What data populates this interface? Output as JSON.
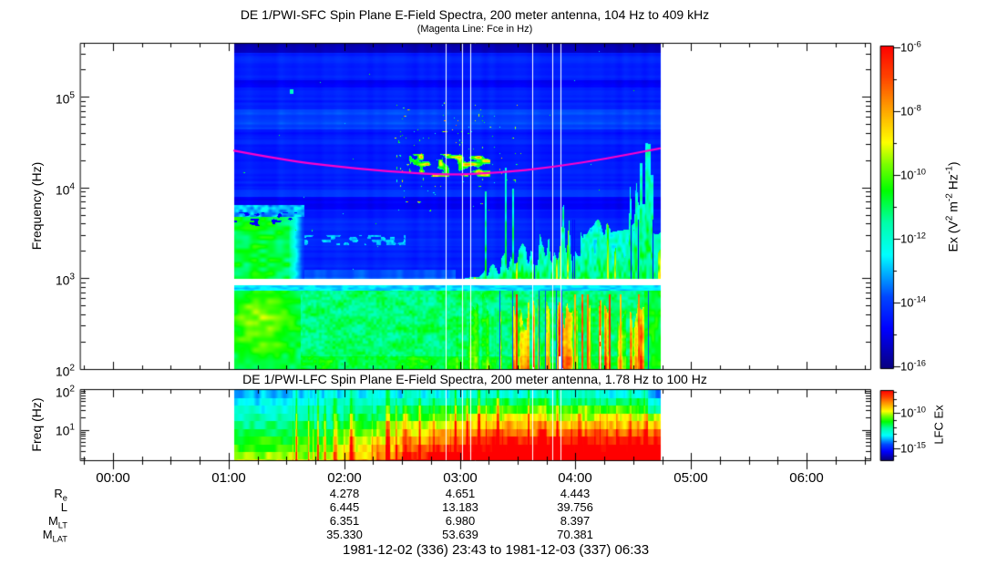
{
  "header": {
    "title": "DE 1/PWI-SFC  Spin Plane E-Field Spectra, 200 meter antenna, 104 Hz to 409 kHz",
    "subtitle": "(Magenta Line: Fce in Hz)"
  },
  "colors": {
    "background": "#ffffff",
    "frame": "#000000",
    "fce_line": "#ff00cc",
    "text": "#000000"
  },
  "chart_data": [
    {
      "id": "sfc",
      "type": "heatmap",
      "title": "DE 1/PWI-SFC  Spin Plane E-Field Spectra, 200 meter antenna, 104 Hz to 409 kHz",
      "annotation": "(Magenta Line: Fce in Hz)",
      "ylabel": "Frequency (Hz)",
      "y_scale": "log",
      "y_range_hz": [
        104,
        409000
      ],
      "y_ticks": [
        {
          "mant": "10",
          "exp": "5",
          "log10": 5
        },
        {
          "mant": "10",
          "exp": "4",
          "log10": 4
        },
        {
          "mant": "10",
          "exp": "3",
          "log10": 3
        },
        {
          "mant": "10",
          "exp": "2",
          "log10": 2
        }
      ],
      "x_axis": {
        "start_label": "23:43",
        "end_label": "06:33",
        "start_hours": -0.2833,
        "end_hours": 6.55,
        "hour_ticks": [
          {
            "h": 0,
            "label": "00:00"
          },
          {
            "h": 1,
            "label": "01:00"
          },
          {
            "h": 2,
            "label": "02:00"
          },
          {
            "h": 3,
            "label": "03:00"
          },
          {
            "h": 4,
            "label": "04:00"
          },
          {
            "h": 5,
            "label": "05:00"
          },
          {
            "h": 6,
            "label": "06:00"
          }
        ],
        "minor_tick_minutes": 15
      },
      "data_extent": {
        "start": "01:03",
        "end": "04:44",
        "start_hours": 1.05,
        "end_hours": 4.7333
      },
      "receiver_gap_hz": [
        850,
        1000
      ],
      "colorbar": {
        "scale": "log",
        "range": [
          1e-16,
          1e-06
        ],
        "ticks": [
          {
            "mant": "10",
            "exp": "-6",
            "value_exp": -6
          },
          {
            "mant": "10",
            "exp": "-8",
            "value_exp": -8
          },
          {
            "mant": "10",
            "exp": "-10",
            "value_exp": -10
          },
          {
            "mant": "10",
            "exp": "-12",
            "value_exp": -12
          },
          {
            "mant": "10",
            "exp": "-14",
            "value_exp": -14
          },
          {
            "mant": "10",
            "exp": "-16",
            "value_exp": -16
          }
        ],
        "label_parts": [
          {
            "t": "Ex (V"
          },
          {
            "t": "2",
            "sup": true
          },
          {
            "t": " m"
          },
          {
            "t": "-2",
            "sup": true
          },
          {
            "t": " Hz"
          },
          {
            "t": "-1",
            "sup": true
          },
          {
            "t": ")"
          }
        ]
      },
      "fce_line": {
        "name": "Fce (electron cyclotron frequency)",
        "color": "#ff00cc",
        "points": [
          {
            "u": 0.0,
            "hz": 25500
          },
          {
            "u": 0.12,
            "hz": 20000
          },
          {
            "u": 0.25,
            "hz": 16800
          },
          {
            "u": 0.4,
            "hz": 14600
          },
          {
            "u": 0.5,
            "hz": 13800
          },
          {
            "u": 0.62,
            "hz": 14500
          },
          {
            "u": 0.75,
            "hz": 16800
          },
          {
            "u": 0.88,
            "hz": 21000
          },
          {
            "u": 1.0,
            "hz": 27000
          }
        ]
      },
      "features": [
        "blue low-power background above 1 kHz with horizontal band striping",
        "green/yellow enhancement band 200 Hz - 1 kHz at start of pass (~01:05-01:30)",
        "broadband cyan/green vertical bursts intensifying 03:00-04:44 below ~10 kHz",
        "scattered cyan/white impulsive spikes near 02:30-03:10 around 10-30 kHz",
        "white horizontal receiver-band gap just below 1 kHz",
        "yellow/orange/red turbulence 104 Hz - 1 kHz after 03:00"
      ]
    },
    {
      "id": "lfc",
      "type": "heatmap",
      "title": "DE 1/PWI-LFC  Spin Plane E-Field Spectra, 200 meter antenna, 1.78 Hz to 100 Hz",
      "ylabel": "Freq (Hz)",
      "y_scale": "log",
      "y_range_hz": [
        1.78,
        100
      ],
      "y_ticks": [
        {
          "mant": "10",
          "exp": "2",
          "log10": 2
        },
        {
          "mant": "10",
          "exp": "1",
          "log10": 1
        }
      ],
      "data_extent": {
        "start": "01:03",
        "end": "04:44",
        "start_hours": 1.05,
        "end_hours": 4.7333
      },
      "colorbar": {
        "scale": "log",
        "label": "LFC Ex",
        "ticks": [
          {
            "mant": "10",
            "exp": "-10",
            "value_exp": -10
          },
          {
            "mant": "10",
            "exp": "-15",
            "value_exp": -15
          }
        ]
      },
      "features": [
        "intensity increases toward low frequency: cyan/green at 100 Hz to yellow/red below 10 Hz",
        "strong red saturation 03:00-04:30 across most channels"
      ]
    }
  ],
  "ephemeris": {
    "value_times": [
      "02:00",
      "03:00",
      "04:00"
    ],
    "value_hours": [
      2,
      3,
      4
    ],
    "rows": [
      {
        "label": "R",
        "sub": "e",
        "values": [
          "4.278",
          "4.651",
          "4.443"
        ]
      },
      {
        "label": "L",
        "sub": "",
        "values": [
          "6.445",
          "13.183",
          "39.756"
        ]
      },
      {
        "label": "M",
        "sub": "LT",
        "values": [
          "6.351",
          "6.980",
          "8.397"
        ]
      },
      {
        "label": "M",
        "sub": "LAT",
        "values": [
          "35.330",
          "53.639",
          "70.381"
        ]
      }
    ],
    "footer": "1981-12-02 (336) 23:43 to 1981-12-03 (337) 06:33"
  }
}
